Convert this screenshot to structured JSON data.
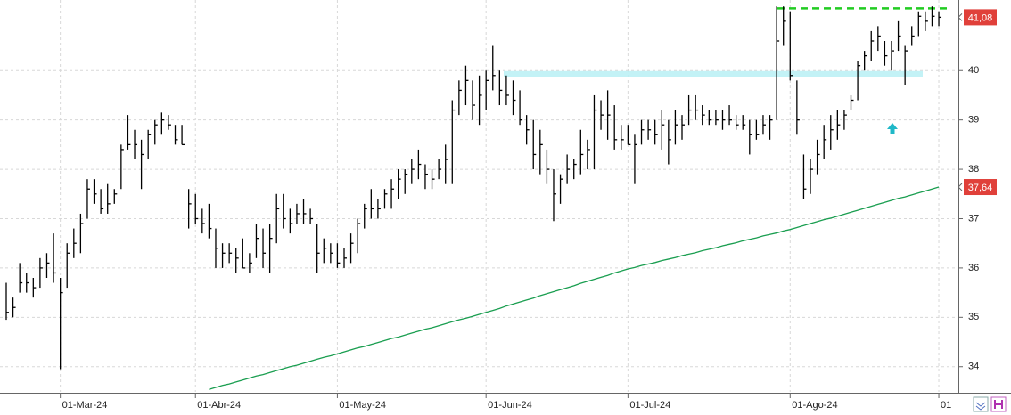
{
  "chart_data": {
    "type": "ohlc",
    "categories": [
      null,
      null,
      null,
      null,
      null,
      null,
      null,
      null,
      "01-Mar-24",
      null,
      null,
      null,
      null,
      null,
      null,
      null,
      null,
      null,
      null,
      null,
      null,
      null,
      null,
      null,
      null,
      null,
      null,
      null,
      "01-Abr-24",
      null,
      null,
      null,
      null,
      null,
      null,
      null,
      null,
      null,
      null,
      null,
      null,
      null,
      null,
      null,
      null,
      null,
      null,
      null,
      null,
      "01-May-24",
      null,
      null,
      null,
      null,
      null,
      null,
      null,
      null,
      null,
      null,
      null,
      null,
      null,
      null,
      null,
      null,
      null,
      null,
      null,
      null,
      null,
      "01-Jun-24",
      null,
      null,
      null,
      null,
      null,
      null,
      null,
      null,
      null,
      null,
      null,
      null,
      null,
      null,
      null,
      null,
      null,
      null,
      null,
      null,
      "01-Jul-24",
      null,
      null,
      null,
      null,
      null,
      null,
      null,
      null,
      null,
      null,
      null,
      null,
      null,
      null,
      null,
      null,
      null,
      null,
      null,
      null,
      null,
      null,
      null,
      "01-Ago-24",
      null,
      null,
      null,
      null,
      null,
      null,
      null,
      null,
      null,
      null,
      null,
      null,
      null,
      null,
      null,
      null,
      null,
      null,
      null,
      null,
      null,
      "01"
    ],
    "high": [
      35.7,
      35.4,
      36.1,
      35.9,
      35.8,
      36.2,
      36.3,
      36.7,
      35.8,
      36.5,
      36.8,
      37.1,
      37.8,
      37.8,
      37.6,
      37.7,
      37.6,
      38.5,
      39.1,
      38.8,
      38.6,
      38.8,
      39.0,
      39.15,
      39.1,
      38.9,
      38.9,
      37.6,
      37.5,
      37.2,
      37.3,
      36.8,
      36.5,
      36.5,
      36.4,
      36.6,
      36.3,
      36.9,
      36.8,
      36.9,
      37.5,
      37.5,
      37.2,
      37.3,
      37.4,
      37.2,
      36.9,
      36.6,
      36.5,
      36.5,
      36.4,
      36.7,
      37.0,
      37.3,
      37.6,
      37.4,
      37.6,
      37.8,
      38.0,
      38.0,
      38.2,
      38.4,
      38.1,
      38.0,
      38.2,
      38.5,
      39.4,
      39.8,
      40.1,
      39.8,
      39.9,
      40.0,
      40.5,
      40.0,
      39.9,
      39.8,
      39.6,
      39.1,
      39.0,
      38.8,
      38.4,
      38.0,
      37.9,
      38.3,
      38.2,
      38.8,
      38.6,
      39.5,
      39.4,
      39.6,
      39.3,
      38.9,
      38.9,
      38.7,
      39.0,
      39.0,
      39.0,
      39.2,
      39.0,
      39.2,
      39.1,
      39.5,
      39.5,
      39.3,
      39.2,
      39.2,
      39.2,
      39.3,
      39.1,
      39.1,
      39.0,
      39.0,
      39.1,
      39.1,
      41.3,
      41.3,
      41.2,
      39.8,
      38.3,
      38.2,
      38.6,
      38.9,
      39.1,
      39.2,
      39.2,
      39.5,
      40.2,
      40.4,
      40.8,
      40.9,
      40.6,
      40.6,
      41.0,
      40.5,
      40.9,
      41.2,
      41.2,
      41.3,
      41.2
    ],
    "low": [
      34.95,
      35.0,
      35.5,
      35.5,
      35.4,
      35.6,
      35.8,
      35.7,
      33.95,
      35.6,
      36.2,
      36.3,
      37.0,
      37.3,
      37.1,
      37.1,
      37.3,
      37.6,
      38.4,
      38.2,
      37.6,
      38.2,
      38.5,
      38.7,
      38.8,
      38.5,
      38.5,
      36.8,
      36.9,
      36.7,
      36.6,
      36.0,
      36.0,
      36.1,
      35.9,
      36.0,
      35.9,
      36.2,
      36.0,
      35.9,
      36.5,
      36.8,
      36.7,
      36.9,
      36.9,
      36.9,
      35.9,
      36.1,
      36.1,
      36.0,
      36.0,
      36.1,
      36.3,
      36.8,
      37.0,
      37.0,
      37.2,
      37.2,
      37.4,
      37.5,
      37.7,
      37.8,
      37.6,
      37.6,
      37.8,
      37.7,
      37.7,
      39.1,
      39.3,
      39.0,
      38.9,
      39.2,
      39.6,
      39.3,
      39.3,
      39.1,
      38.9,
      38.5,
      38.0,
      37.9,
      37.7,
      36.95,
      37.3,
      37.7,
      37.8,
      37.9,
      38.0,
      38.0,
      38.8,
      38.6,
      38.4,
      38.4,
      38.5,
      37.7,
      38.5,
      38.6,
      38.5,
      38.4,
      38.1,
      38.5,
      38.6,
      38.9,
      39.0,
      38.9,
      38.9,
      38.9,
      38.8,
      38.9,
      38.8,
      38.8,
      38.3,
      38.6,
      38.7,
      38.6,
      39.0,
      40.5,
      39.8,
      38.7,
      37.4,
      37.5,
      37.9,
      38.2,
      38.4,
      38.6,
      38.8,
      39.2,
      39.4,
      40.0,
      40.2,
      40.4,
      40.1,
      40.0,
      40.4,
      39.7,
      40.5,
      40.7,
      40.8,
      40.9,
      40.9
    ],
    "close": [
      35.1,
      35.2,
      35.7,
      35.7,
      35.6,
      36.0,
      36.1,
      35.9,
      35.5,
      36.3,
      36.5,
      36.9,
      37.6,
      37.5,
      37.2,
      37.3,
      37.5,
      38.4,
      38.5,
      38.5,
      38.3,
      38.7,
      38.9,
      39.0,
      38.9,
      38.6,
      38.5,
      37.3,
      37.0,
      36.9,
      36.8,
      36.4,
      36.3,
      36.3,
      36.2,
      36.0,
      36.1,
      36.6,
      36.3,
      36.6,
      37.2,
      37.0,
      36.9,
      37.1,
      37.1,
      37.0,
      36.3,
      36.4,
      36.3,
      36.1,
      36.2,
      36.5,
      36.9,
      37.2,
      37.2,
      37.2,
      37.5,
      37.6,
      37.8,
      37.9,
      38.0,
      38.1,
      37.9,
      37.8,
      38.0,
      38.2,
      39.2,
      39.6,
      39.8,
      39.3,
      39.5,
      39.8,
      39.9,
      39.6,
      39.5,
      39.4,
      39.0,
      38.8,
      38.3,
      38.5,
      38.0,
      37.5,
      37.8,
      38.0,
      38.1,
      38.3,
      38.4,
      39.2,
      39.1,
      39.1,
      38.6,
      38.6,
      38.5,
      38.5,
      38.8,
      38.8,
      38.7,
      38.9,
      38.6,
      38.9,
      38.9,
      39.2,
      39.2,
      39.1,
      39.0,
      39.0,
      39.0,
      39.0,
      38.9,
      38.9,
      38.7,
      38.7,
      38.9,
      39.0,
      40.6,
      41.0,
      39.9,
      39.0,
      37.6,
      38.0,
      38.3,
      38.6,
      38.8,
      38.9,
      39.1,
      39.4,
      40.1,
      40.3,
      40.6,
      40.7,
      40.3,
      40.4,
      40.7,
      40.4,
      40.7,
      41.1,
      41.0,
      41.1,
      41.08
    ],
    "color": "#000000",
    "ma": {
      "color": "#1a9e50",
      "values": [
        null,
        null,
        null,
        null,
        null,
        null,
        null,
        null,
        null,
        null,
        null,
        null,
        null,
        null,
        null,
        null,
        null,
        null,
        null,
        null,
        null,
        null,
        null,
        null,
        null,
        null,
        null,
        null,
        null,
        null,
        33.54,
        33.58,
        33.62,
        33.65,
        33.69,
        33.73,
        33.77,
        33.81,
        33.84,
        33.88,
        33.92,
        33.96,
        34.0,
        34.03,
        34.07,
        34.11,
        34.15,
        34.19,
        34.22,
        34.26,
        34.3,
        34.34,
        34.38,
        34.41,
        34.45,
        34.49,
        34.53,
        34.57,
        34.6,
        34.64,
        34.68,
        34.72,
        34.76,
        34.79,
        34.83,
        34.87,
        34.91,
        34.95,
        34.98,
        35.02,
        35.06,
        35.1,
        35.14,
        35.18,
        35.23,
        35.27,
        35.31,
        35.35,
        35.39,
        35.44,
        35.48,
        35.52,
        35.56,
        35.6,
        35.64,
        35.69,
        35.73,
        35.77,
        35.81,
        35.85,
        35.9,
        35.94,
        35.98,
        36.01,
        36.05,
        36.08,
        36.11,
        36.15,
        36.18,
        36.21,
        36.25,
        36.28,
        36.31,
        36.35,
        36.38,
        36.41,
        36.45,
        36.48,
        36.51,
        36.55,
        36.58,
        36.61,
        36.65,
        36.68,
        36.71,
        36.75,
        36.78,
        36.82,
        36.86,
        36.9,
        36.94,
        36.98,
        37.01,
        37.05,
        37.09,
        37.13,
        37.17,
        37.21,
        37.25,
        37.29,
        37.33,
        37.37,
        37.41,
        37.44,
        37.48,
        37.52,
        37.56,
        37.6,
        37.64
      ]
    },
    "resistance": {
      "value": 41.26,
      "color": "#22cc22"
    },
    "zone": {
      "low": 39.86,
      "high": 39.99,
      "color": "#b8f0f4"
    },
    "last_price": {
      "value": 41.08,
      "label": "41,08"
    },
    "ma_last": {
      "value": 37.64,
      "label": "37,64"
    },
    "price_label_color": "#e0403a",
    "ylim": [
      33.49,
      41.43
    ],
    "yticks": [
      34,
      35,
      36,
      37,
      38,
      39,
      40
    ],
    "grid": true
  }
}
